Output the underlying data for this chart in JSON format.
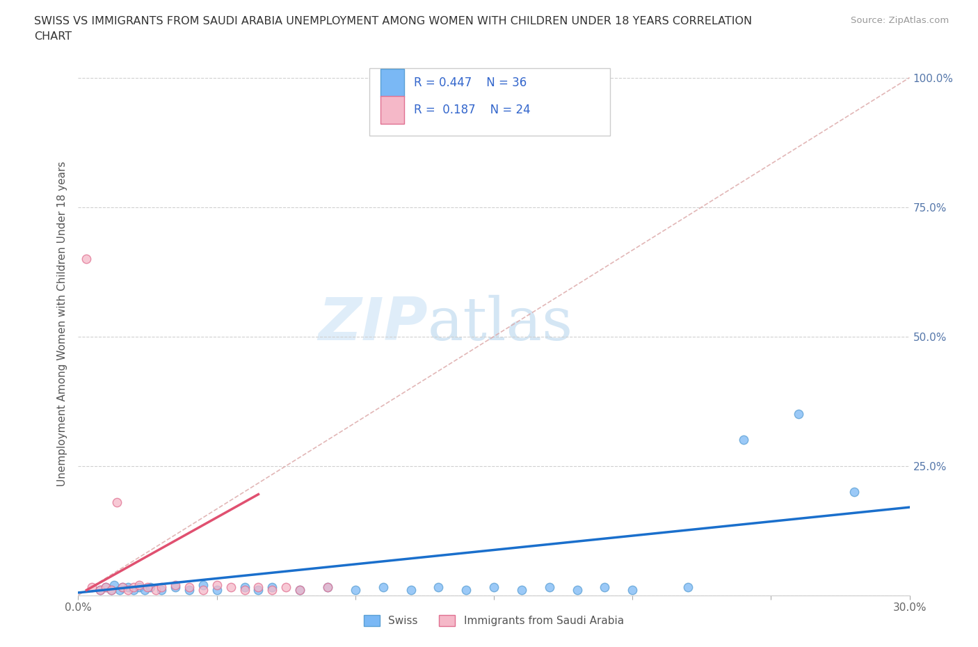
{
  "title_line1": "SWISS VS IMMIGRANTS FROM SAUDI ARABIA UNEMPLOYMENT AMONG WOMEN WITH CHILDREN UNDER 18 YEARS CORRELATION",
  "title_line2": "CHART",
  "source": "Source: ZipAtlas.com",
  "ylabel": "Unemployment Among Women with Children Under 18 years",
  "xlim": [
    0.0,
    0.3
  ],
  "ylim": [
    0.0,
    1.05
  ],
  "x_ticks": [
    0.0,
    0.05,
    0.1,
    0.15,
    0.2,
    0.25,
    0.3
  ],
  "y_ticks": [
    0.0,
    0.25,
    0.5,
    0.75,
    1.0
  ],
  "y_tick_labels": [
    "",
    "25.0%",
    "50.0%",
    "75.0%",
    "100.0%"
  ],
  "swiss_color": "#7ab8f5",
  "swiss_edge": "#5a9fd4",
  "saudi_color": "#f5b8c8",
  "saudi_edge": "#e07090",
  "swiss_R": 0.447,
  "swiss_N": 36,
  "saudi_R": 0.187,
  "saudi_N": 24,
  "swiss_trend_color": "#1a6fcc",
  "saudi_trend_color": "#e05070",
  "ref_line_color": "#ddaaaa",
  "swiss_scatter_x": [
    0.008,
    0.01,
    0.012,
    0.013,
    0.015,
    0.016,
    0.018,
    0.02,
    0.022,
    0.024,
    0.026,
    0.03,
    0.035,
    0.04,
    0.045,
    0.05,
    0.06,
    0.065,
    0.07,
    0.08,
    0.09,
    0.1,
    0.11,
    0.12,
    0.13,
    0.14,
    0.15,
    0.16,
    0.17,
    0.18,
    0.19,
    0.2,
    0.22,
    0.24,
    0.26,
    0.28
  ],
  "swiss_scatter_y": [
    0.01,
    0.015,
    0.01,
    0.02,
    0.01,
    0.015,
    0.015,
    0.01,
    0.015,
    0.01,
    0.015,
    0.01,
    0.015,
    0.01,
    0.02,
    0.01,
    0.015,
    0.01,
    0.015,
    0.01,
    0.015,
    0.01,
    0.015,
    0.01,
    0.015,
    0.01,
    0.015,
    0.01,
    0.015,
    0.01,
    0.015,
    0.01,
    0.015,
    0.3,
    0.35,
    0.2
  ],
  "saudi_scatter_x": [
    0.003,
    0.005,
    0.008,
    0.01,
    0.012,
    0.014,
    0.016,
    0.018,
    0.02,
    0.022,
    0.025,
    0.028,
    0.03,
    0.035,
    0.04,
    0.045,
    0.05,
    0.055,
    0.06,
    0.065,
    0.07,
    0.075,
    0.08,
    0.09
  ],
  "saudi_scatter_y": [
    0.65,
    0.015,
    0.01,
    0.015,
    0.01,
    0.18,
    0.015,
    0.01,
    0.015,
    0.02,
    0.015,
    0.01,
    0.015,
    0.02,
    0.015,
    0.01,
    0.02,
    0.015,
    0.01,
    0.015,
    0.01,
    0.015,
    0.01,
    0.015
  ],
  "swiss_trend_x0": 0.0,
  "swiss_trend_x1": 0.3,
  "swiss_trend_y0": 0.005,
  "swiss_trend_y1": 0.17,
  "saudi_trend_x0": 0.003,
  "saudi_trend_x1": 0.065,
  "saudi_trend_y0": 0.01,
  "saudi_trend_y1": 0.195,
  "watermark_zip": "ZIP",
  "watermark_atlas": "atlas",
  "background_color": "#ffffff",
  "grid_color": "#d0d0d0"
}
